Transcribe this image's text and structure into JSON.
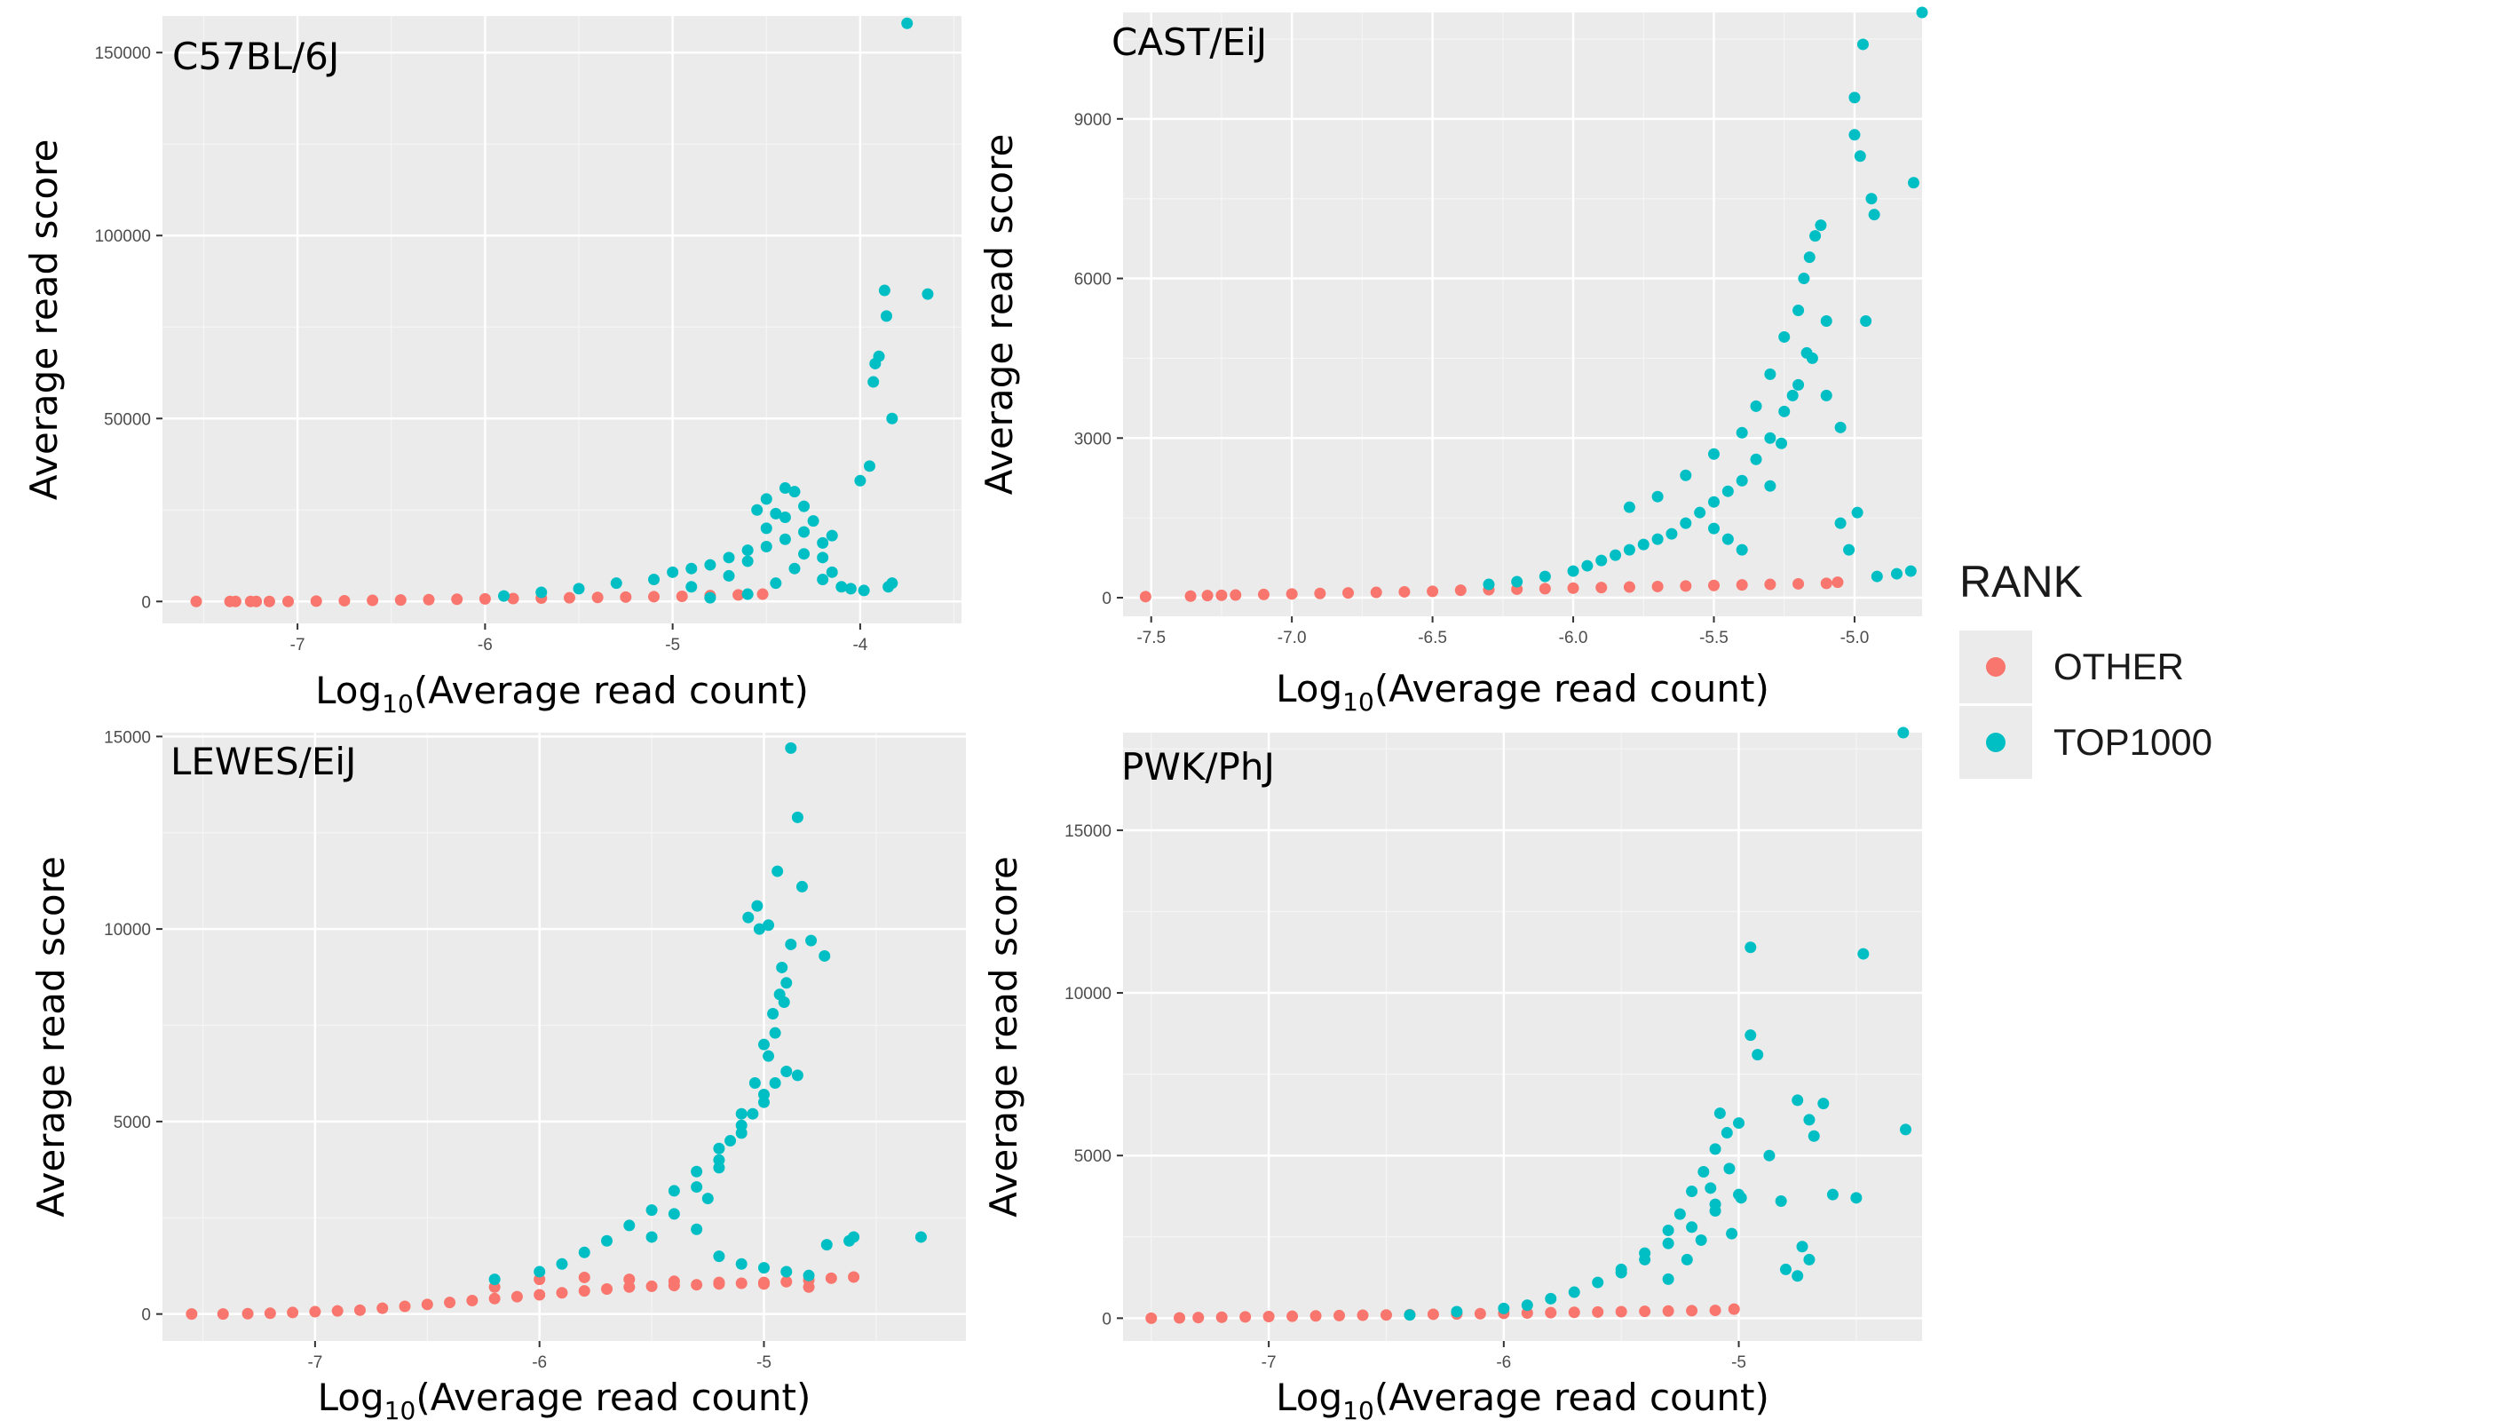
{
  "legend": {
    "title": "RANK",
    "entries": [
      {
        "label": "OTHER",
        "color": "#F8766D"
      },
      {
        "label": "TOP1000",
        "color": "#00BFC4"
      }
    ]
  },
  "chart_data": [
    {
      "type": "scatter",
      "title": "C57BL/6J",
      "xlabel_base": "Log",
      "xlabel_sub": "10",
      "xlabel_rest": "(Average read count)",
      "ylabel": "Average read score",
      "xlim": [
        -7.72,
        -3.46
      ],
      "ylim": [
        -6000,
        160000
      ],
      "xticks": [
        -7,
        -6,
        -5,
        -4
      ],
      "xtick_labels": [
        "-7",
        "-6",
        "-5",
        "-4"
      ],
      "yticks": [
        0,
        50000,
        100000,
        150000
      ],
      "ytick_labels": [
        "0",
        "50000",
        "100000",
        "150000"
      ],
      "series": [
        {
          "name": "OTHER",
          "color": "#F8766D",
          "x": [
            -7.54,
            -7.36,
            -7.33,
            -7.25,
            -7.22,
            -7.15,
            -7.05,
            -6.9,
            -6.75,
            -6.6,
            -6.45,
            -6.3,
            -6.15,
            -6.0,
            -5.85,
            -5.7,
            -5.55,
            -5.4,
            -5.25,
            -5.1,
            -4.95,
            -4.8,
            -4.65,
            -4.52
          ],
          "y": [
            0,
            0,
            0,
            0,
            0,
            0,
            0,
            100,
            200,
            300,
            400,
            500,
            600,
            700,
            800,
            900,
            1000,
            1100,
            1200,
            1300,
            1400,
            1600,
            1800,
            2000
          ]
        },
        {
          "name": "TOP1000",
          "color": "#00BFC4",
          "x": [
            -5.9,
            -5.7,
            -5.5,
            -5.3,
            -5.1,
            -5.0,
            -4.9,
            -4.8,
            -4.7,
            -4.6,
            -4.5,
            -4.4,
            -4.3,
            -4.2,
            -4.9,
            -4.7,
            -4.6,
            -4.5,
            -4.4,
            -4.3,
            -4.8,
            -4.6,
            -4.45,
            -4.35,
            -4.2,
            -4.5,
            -4.4,
            -4.25,
            -4.15,
            -4.55,
            -4.35,
            -4.2,
            -4.1,
            -4.05,
            -3.98,
            -3.95,
            -4.0,
            -3.93,
            -3.92,
            -3.9,
            -3.83,
            -3.87,
            -3.86,
            -3.75,
            -3.64,
            -3.85,
            -3.83,
            -4.45,
            -4.3,
            -4.15
          ],
          "y": [
            1500,
            2500,
            3500,
            5000,
            6000,
            8000,
            9000,
            10000,
            12000,
            14000,
            15000,
            17000,
            19000,
            16000,
            4000,
            7000,
            11000,
            20000,
            23000,
            26000,
            1000,
            2000,
            5000,
            9000,
            12000,
            28000,
            31000,
            22000,
            18000,
            25000,
            30000,
            6000,
            4000,
            3500,
            3000,
            37000,
            33000,
            60000,
            65000,
            67000,
            50000,
            85000,
            78000,
            158000,
            84000,
            4000,
            5000,
            24000,
            13000,
            8000
          ]
        }
      ]
    },
    {
      "type": "scatter",
      "title": "CAST/EiJ",
      "xlabel_base": "Log",
      "xlabel_sub": "10",
      "xlabel_rest": "(Average read count)",
      "ylabel": "Average read score",
      "xlim": [
        -7.6,
        -4.76
      ],
      "ylim": [
        -350,
        11000
      ],
      "xticks": [
        -7.5,
        -7.0,
        -6.5,
        -6.0,
        -5.5,
        -5.0
      ],
      "xtick_labels": [
        "-7.5",
        "-7.0",
        "-6.5",
        "-6.0",
        "-5.5",
        "-5.0"
      ],
      "yticks": [
        0,
        3000,
        6000,
        9000
      ],
      "ytick_labels": [
        "0",
        "3000",
        "6000",
        "9000"
      ],
      "series": [
        {
          "name": "OTHER",
          "color": "#F8766D",
          "x": [
            -7.52,
            -7.36,
            -7.3,
            -7.25,
            -7.2,
            -7.1,
            -7.0,
            -6.9,
            -6.8,
            -6.7,
            -6.6,
            -6.5,
            -6.4,
            -6.3,
            -6.2,
            -6.1,
            -6.0,
            -5.9,
            -5.8,
            -5.7,
            -5.6,
            -5.5,
            -5.4,
            -5.3,
            -5.2,
            -5.1,
            -5.06
          ],
          "y": [
            20,
            30,
            40,
            45,
            50,
            60,
            70,
            80,
            90,
            100,
            110,
            120,
            140,
            150,
            160,
            170,
            180,
            190,
            200,
            210,
            220,
            230,
            240,
            250,
            260,
            270,
            290
          ]
        },
        {
          "name": "TOP1000",
          "color": "#00BFC4",
          "x": [
            -6.3,
            -6.2,
            -6.1,
            -6.0,
            -5.95,
            -5.9,
            -5.85,
            -5.8,
            -5.75,
            -5.7,
            -5.65,
            -5.6,
            -5.55,
            -5.5,
            -5.45,
            -5.4,
            -5.35,
            -5.3,
            -5.25,
            -5.2,
            -5.15,
            -5.1,
            -5.05,
            -5.8,
            -5.7,
            -5.6,
            -5.5,
            -5.4,
            -5.35,
            -5.3,
            -5.25,
            -5.2,
            -5.18,
            -5.16,
            -5.14,
            -5.12,
            -5.3,
            -5.26,
            -5.22,
            -5.17,
            -5.1,
            -5.05,
            -5.02,
            -5.0,
            -4.98,
            -5.0,
            -4.97,
            -4.94,
            -4.93,
            -4.96,
            -4.99,
            -4.92,
            -4.85,
            -4.8,
            -4.79,
            -4.76,
            -5.5,
            -5.45,
            -5.4
          ],
          "y": [
            250,
            300,
            400,
            500,
            600,
            700,
            800,
            900,
            1000,
            1100,
            1200,
            1400,
            1600,
            1800,
            2000,
            2200,
            2600,
            3000,
            3500,
            4000,
            4500,
            3800,
            3200,
            1700,
            1900,
            2300,
            2700,
            3100,
            3600,
            4200,
            4900,
            5400,
            6000,
            6400,
            6800,
            7000,
            2100,
            2900,
            3800,
            4600,
            5200,
            1400,
            900,
            8700,
            8300,
            9400,
            10400,
            7500,
            7200,
            5200,
            1600,
            400,
            450,
            500,
            7800,
            11000,
            1300,
            1100,
            900
          ]
        }
      ]
    },
    {
      "type": "scatter",
      "title": "LEWES/EiJ",
      "xlabel_base": "Log",
      "xlabel_sub": "10",
      "xlabel_rest": "(Average read count)",
      "ylabel": "Average read score",
      "xlim": [
        -7.68,
        -4.1
      ],
      "ylim": [
        -700,
        15100
      ],
      "xticks": [
        -7,
        -6,
        -5
      ],
      "xtick_labels": [
        "-7",
        "-6",
        "-5"
      ],
      "yticks": [
        0,
        5000,
        10000,
        15000
      ],
      "ytick_labels": [
        "0",
        "5000",
        "10000",
        "15000"
      ],
      "series": [
        {
          "name": "OTHER",
          "color": "#F8766D",
          "x": [
            -7.55,
            -7.41,
            -7.3,
            -7.2,
            -7.1,
            -7.0,
            -6.9,
            -6.8,
            -6.7,
            -6.6,
            -6.5,
            -6.4,
            -6.3,
            -6.2,
            -6.1,
            -6.0,
            -5.9,
            -5.8,
            -5.7,
            -5.6,
            -5.5,
            -5.4,
            -5.3,
            -5.2,
            -5.1,
            -5.0,
            -4.9,
            -4.8,
            -4.7,
            -4.6,
            -6.2,
            -6.0,
            -5.8,
            -5.6,
            -5.4,
            -5.2,
            -5.0,
            -4.8
          ],
          "y": [
            0,
            0,
            10,
            20,
            40,
            60,
            80,
            100,
            150,
            200,
            250,
            300,
            350,
            400,
            450,
            500,
            550,
            600,
            650,
            700,
            720,
            740,
            760,
            780,
            800,
            820,
            840,
            880,
            930,
            960,
            700,
            900,
            950,
            900,
            850,
            820,
            780,
            700
          ]
        },
        {
          "name": "TOP1000",
          "color": "#00BFC4",
          "x": [
            -6.2,
            -6.0,
            -5.9,
            -5.8,
            -5.7,
            -5.6,
            -5.5,
            -5.4,
            -5.3,
            -5.2,
            -5.1,
            -5.0,
            -4.95,
            -4.9,
            -5.5,
            -5.4,
            -5.3,
            -5.2,
            -5.1,
            -5.05,
            -5.0,
            -4.98,
            -4.95,
            -5.3,
            -5.25,
            -5.2,
            -5.15,
            -5.1,
            -5.04,
            -5.0,
            -4.96,
            -4.93,
            -4.9,
            -4.92,
            -4.88,
            -5.07,
            -5.03,
            -5.02,
            -4.98,
            -4.94,
            -4.88,
            -4.85,
            -4.83,
            -4.79,
            -4.73,
            -4.91,
            -4.85,
            -4.6,
            -4.72,
            -4.62,
            -4.3,
            -5.2,
            -5.1,
            -5.0,
            -4.9,
            -4.8
          ],
          "y": [
            900,
            1100,
            1300,
            1600,
            1900,
            2300,
            2700,
            3200,
            3700,
            4300,
            4900,
            5500,
            6000,
            6300,
            2000,
            2600,
            3300,
            4000,
            4700,
            5200,
            5700,
            6700,
            7300,
            2200,
            3000,
            3800,
            4500,
            5200,
            6000,
            7000,
            7800,
            8300,
            8600,
            9000,
            9600,
            10300,
            10600,
            10000,
            10100,
            11500,
            14700,
            12900,
            11100,
            9700,
            9300,
            8100,
            6200,
            2000,
            1800,
            1900,
            2000,
            1500,
            1300,
            1200,
            1100,
            1000
          ]
        }
      ]
    },
    {
      "type": "scatter",
      "title": "PWK/PhJ",
      "xlabel_base": "Log",
      "xlabel_sub": "10",
      "xlabel_rest": "(Average read count)",
      "ylabel": "Average read score",
      "xlim": [
        -7.62,
        -4.22
      ],
      "ylim": [
        -700,
        18000
      ],
      "xticks": [
        -7,
        -6,
        -5
      ],
      "xtick_labels": [
        "-7",
        "-6",
        "-5"
      ],
      "yticks": [
        0,
        5000,
        10000,
        15000
      ],
      "ytick_labels": [
        "0",
        "5000",
        "10000",
        "15000"
      ],
      "series": [
        {
          "name": "OTHER",
          "color": "#F8766D",
          "x": [
            -7.5,
            -7.38,
            -7.3,
            -7.2,
            -7.1,
            -7.0,
            -6.9,
            -6.8,
            -6.7,
            -6.6,
            -6.5,
            -6.4,
            -6.3,
            -6.2,
            -6.1,
            -6.0,
            -5.9,
            -5.8,
            -5.7,
            -5.6,
            -5.5,
            -5.4,
            -5.3,
            -5.2,
            -5.1,
            -5.02
          ],
          "y": [
            0,
            10,
            20,
            30,
            40,
            50,
            60,
            70,
            80,
            90,
            100,
            110,
            120,
            130,
            140,
            150,
            160,
            170,
            180,
            190,
            200,
            210,
            220,
            230,
            240,
            280
          ]
        },
        {
          "name": "TOP1000",
          "color": "#00BFC4",
          "x": [
            -6.4,
            -6.2,
            -6.0,
            -5.9,
            -5.8,
            -5.7,
            -5.6,
            -5.5,
            -5.4,
            -5.3,
            -5.2,
            -5.1,
            -5.0,
            -5.5,
            -5.4,
            -5.3,
            -5.25,
            -5.2,
            -5.15,
            -5.1,
            -5.05,
            -5.0,
            -5.3,
            -5.22,
            -5.16,
            -5.12,
            -5.08,
            -5.04,
            -4.99,
            -4.95,
            -4.92,
            -4.87,
            -4.82,
            -4.75,
            -4.7,
            -4.68,
            -4.64,
            -4.6,
            -4.5,
            -4.47,
            -4.3,
            -4.29,
            -4.73,
            -4.7,
            -4.95,
            -5.1,
            -5.03,
            -4.8,
            -4.75
          ],
          "y": [
            100,
            200,
            300,
            400,
            600,
            800,
            1100,
            1400,
            1800,
            2300,
            2800,
            3300,
            3800,
            1500,
            2000,
            2700,
            3200,
            3900,
            4500,
            5200,
            5700,
            6000,
            1200,
            1800,
            2400,
            4000,
            6300,
            4600,
            3700,
            11400,
            8100,
            5000,
            3600,
            6700,
            6100,
            5600,
            6600,
            3800,
            3700,
            11200,
            18000,
            5800,
            2200,
            1800,
            8700,
            3500,
            2600,
            1500,
            1300
          ]
        }
      ]
    }
  ]
}
